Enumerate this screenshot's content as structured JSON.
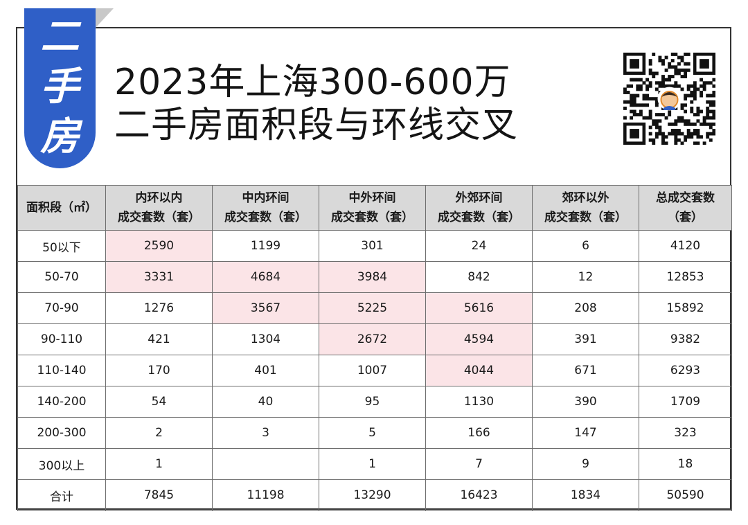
{
  "tag": [
    "二",
    "手",
    "房"
  ],
  "title": {
    "line1": "2023年上海300-600万",
    "line2": "二手房面积段与环线交叉"
  },
  "qr_icon": "qr-code-with-avatar",
  "colors": {
    "tag_blue": "#2f5fc7",
    "header_gray": "#d9d9d9",
    "highlight_pink": "#fbe4e7"
  },
  "table": {
    "headers": [
      {
        "l1": "面积段（㎡）",
        "l2": ""
      },
      {
        "l1": "内环以内",
        "l2": "成交套数（套）"
      },
      {
        "l1": "中内环间",
        "l2": "成交套数（套）"
      },
      {
        "l1": "中外环间",
        "l2": "成交套数（套）"
      },
      {
        "l1": "外郊环间",
        "l2": "成交套数（套）"
      },
      {
        "l1": "郊环以外",
        "l2": "成交套数（套）"
      },
      {
        "l1": "总成交套数",
        "l2": "（套）"
      }
    ],
    "rows": [
      {
        "cells": [
          "50以下",
          "2590",
          "1199",
          "301",
          "24",
          "6",
          "4120"
        ],
        "hl": [
          1
        ]
      },
      {
        "cells": [
          "50-70",
          "3331",
          "4684",
          "3984",
          "842",
          "12",
          "12853"
        ],
        "hl": [
          1,
          2,
          3
        ]
      },
      {
        "cells": [
          "70-90",
          "1276",
          "3567",
          "5225",
          "5616",
          "208",
          "15892"
        ],
        "hl": [
          2,
          3,
          4
        ]
      },
      {
        "cells": [
          "90-110",
          "421",
          "1304",
          "2672",
          "4594",
          "391",
          "9382"
        ],
        "hl": [
          3,
          4
        ]
      },
      {
        "cells": [
          "110-140",
          "170",
          "401",
          "1007",
          "4044",
          "671",
          "6293"
        ],
        "hl": [
          4
        ]
      },
      {
        "cells": [
          "140-200",
          "54",
          "40",
          "95",
          "1130",
          "390",
          "1709"
        ],
        "hl": []
      },
      {
        "cells": [
          "200-300",
          "2",
          "3",
          "5",
          "166",
          "147",
          "323"
        ],
        "hl": []
      },
      {
        "cells": [
          "300以上",
          "1",
          "",
          "1",
          "7",
          "9",
          "18"
        ],
        "hl": []
      },
      {
        "cells": [
          "合计",
          "7845",
          "11198",
          "13290",
          "16423",
          "1834",
          "50590"
        ],
        "hl": []
      }
    ]
  }
}
